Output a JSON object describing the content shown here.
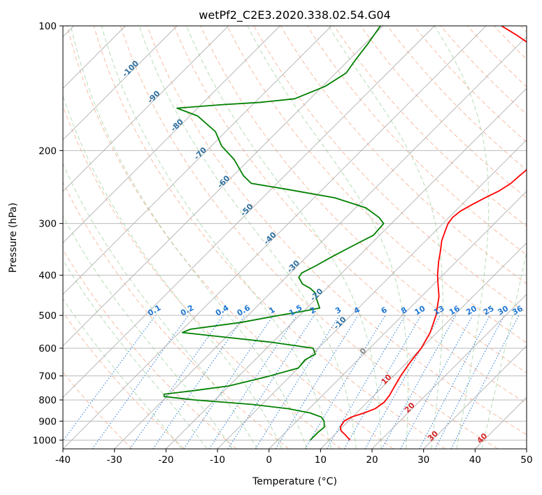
{
  "chart_data": {
    "type": "line",
    "subtype": "skew-T log-P diagram",
    "title": "wetPf2_C2E3.2020.338.02.54.G04",
    "xlabel": "Temperature (°C)",
    "ylabel": "Pressure (hPa)",
    "xlim": [
      -40,
      50
    ],
    "ylim_hpa": [
      1050,
      100
    ],
    "y_scale": "log",
    "grid": true,
    "x_ticks": [
      -40,
      -30,
      -20,
      -10,
      0,
      10,
      20,
      30,
      40,
      50
    ],
    "y_ticks": [
      100,
      200,
      300,
      400,
      500,
      600,
      700,
      800,
      900,
      1000
    ],
    "series": [
      {
        "color": "#ff0000",
        "points": [
          [
            1000,
            14.0
          ],
          [
            970,
            12.0
          ],
          [
            950,
            10.5
          ],
          [
            930,
            9.6
          ],
          [
            900,
            9.2
          ],
          [
            880,
            9.8
          ],
          [
            860,
            11.5
          ],
          [
            840,
            12.8
          ],
          [
            810,
            13.3
          ],
          [
            780,
            13.0
          ],
          [
            750,
            12.4
          ],
          [
            700,
            11.4
          ],
          [
            650,
            10.6
          ],
          [
            600,
            10.0
          ],
          [
            550,
            8.7
          ],
          [
            500,
            6.5
          ],
          [
            450,
            3.4
          ],
          [
            420,
            0.8
          ],
          [
            400,
            -1.0
          ],
          [
            370,
            -3.5
          ],
          [
            350,
            -5.1
          ],
          [
            330,
            -6.9
          ],
          [
            310,
            -8.3
          ],
          [
            300,
            -9.0
          ],
          [
            290,
            -9.3
          ],
          [
            280,
            -9.0
          ],
          [
            270,
            -8.0
          ],
          [
            260,
            -6.8
          ],
          [
            250,
            -5.4
          ],
          [
            240,
            -4.6
          ],
          [
            230,
            -4.4
          ],
          [
            220,
            -4.1
          ],
          [
            210,
            -4.0
          ],
          [
            200,
            -4.2
          ],
          [
            190,
            -4.3
          ],
          [
            180,
            -5.0
          ],
          [
            170,
            -6.1
          ],
          [
            160,
            -7.4
          ],
          [
            150,
            -9.0
          ],
          [
            140,
            -11.7
          ],
          [
            130,
            -14.8
          ],
          [
            120,
            -19.3
          ],
          [
            115,
            -24.2
          ],
          [
            110,
            -28.5
          ],
          [
            105,
            -32.5
          ],
          [
            100,
            -37.0
          ]
        ]
      },
      {
        "color": "#008000",
        "points": [
          [
            1000,
            6.3
          ],
          [
            960,
            6.3
          ],
          [
            930,
            6.5
          ],
          [
            900,
            5.3
          ],
          [
            880,
            4.0
          ],
          [
            860,
            1.0
          ],
          [
            840,
            -4.0
          ],
          [
            820,
            -12.0
          ],
          [
            800,
            -24.0
          ],
          [
            785,
            -30.5
          ],
          [
            775,
            -31.0
          ],
          [
            760,
            -26.0
          ],
          [
            740,
            -20.0
          ],
          [
            710,
            -15.5
          ],
          [
            700,
            -14.0
          ],
          [
            670,
            -10.0
          ],
          [
            640,
            -10.3
          ],
          [
            620,
            -9.4
          ],
          [
            600,
            -11.0
          ],
          [
            580,
            -20.5
          ],
          [
            560,
            -33.0
          ],
          [
            550,
            -39.4
          ],
          [
            540,
            -38.5
          ],
          [
            520,
            -30.0
          ],
          [
            500,
            -24.0
          ],
          [
            490,
            -20.5
          ],
          [
            480,
            -17.5
          ],
          [
            470,
            -18.5
          ],
          [
            455,
            -20.0
          ],
          [
            440,
            -21.5
          ],
          [
            430,
            -23.2
          ],
          [
            420,
            -25.5
          ],
          [
            405,
            -27.5
          ],
          [
            395,
            -27.8
          ],
          [
            380,
            -26.5
          ],
          [
            360,
            -25.0
          ],
          [
            340,
            -23.2
          ],
          [
            320,
            -21.2
          ],
          [
            300,
            -21.5
          ],
          [
            290,
            -23.6
          ],
          [
            275,
            -28.0
          ],
          [
            260,
            -36.0
          ],
          [
            248,
            -47.0
          ],
          [
            240,
            -55.0
          ],
          [
            230,
            -58.0
          ],
          [
            210,
            -63.0
          ],
          [
            195,
            -68.0
          ],
          [
            180,
            -72.0
          ],
          [
            165,
            -78.5
          ],
          [
            158,
            -84.0
          ],
          [
            155,
            -76.0
          ],
          [
            153,
            -69.0
          ],
          [
            150,
            -63.0
          ],
          [
            140,
            -59.5
          ],
          [
            130,
            -58.0
          ],
          [
            120,
            -58.8
          ],
          [
            110,
            -59.5
          ],
          [
            100,
            -60.5
          ]
        ]
      }
    ],
    "dry_adiabats_c": [
      -100,
      -90,
      -80,
      -70,
      -60,
      -50,
      -40,
      -30,
      -20,
      -10,
      0,
      10,
      20,
      30,
      40
    ],
    "mixing_ratios_gkg": [
      "0.1",
      "0.2",
      "0.4",
      "0.6",
      "1",
      "1.5",
      "2",
      "3",
      "4",
      "6",
      "8",
      "10",
      "13",
      "16",
      "20",
      "25",
      "30",
      "36"
    ]
  }
}
